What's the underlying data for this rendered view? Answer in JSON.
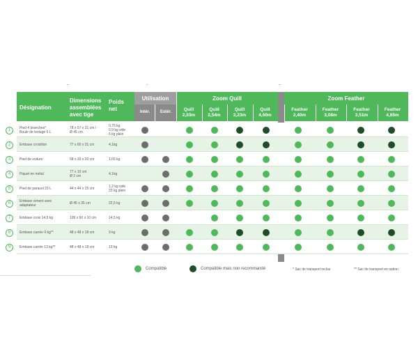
{
  "colors": {
    "green": "#4fb85a",
    "dark_green": "#1e4d27",
    "grey_dot": "#6d6d6d",
    "header_grey": "#9e9e9e",
    "row_alt": "#e8f3e8"
  },
  "header": {
    "designation": "Désignation",
    "dimensions_l1": "Dimensions",
    "dimensions_l2": "assemblées",
    "dimensions_l3": "avec tige",
    "poids_l1": "Poids",
    "poids_l2": "net",
    "utilisation": "Utilisation",
    "interieur": "Intér.",
    "exterieur": "Extér.",
    "zoom_quill": "Zoom Quill",
    "zoom_feather": "Zoom Feather",
    "quill_cols": [
      {
        "l1": "Quill",
        "l2": "2,03m"
      },
      {
        "l1": "Quill",
        "l2": "2,54m"
      },
      {
        "l1": "Quill",
        "l2": "3,23m"
      },
      {
        "l1": "Quill",
        "l2": "4,60m"
      }
    ],
    "feather_cols": [
      {
        "l1": "Feather",
        "l2": "2,40m"
      },
      {
        "l1": "Feather",
        "l2": "3,08m"
      },
      {
        "l1": "Feather",
        "l2": "3,51m"
      },
      {
        "l1": "Feather",
        "l2": "4,65m"
      }
    ]
  },
  "rows": [
    {
      "num": "1",
      "name_l1": "Pied 4 branches*",
      "name_l2": "Boule de lestage 6 L",
      "dim_l1": "78 x 57 x 31 cm /",
      "dim_l2": "Ø 45 cm",
      "poids_l1": "0,75 kg",
      "poids_l2": "0,9 kg vide",
      "poids_l3": "6 kg plein",
      "use": [
        "grey",
        ""
      ],
      "quill": [
        "green",
        "green",
        "dark",
        "dark"
      ],
      "feather": [
        "green",
        "green",
        "dark",
        "dark"
      ]
    },
    {
      "num": "2",
      "name_l1": "Embase croisillon",
      "name_l2": "",
      "dim_l1": "77 x 60 x 31 cm",
      "dim_l2": "",
      "poids_l1": "4,1kg",
      "poids_l2": "",
      "poids_l3": "",
      "use": [
        "grey",
        ""
      ],
      "quill": [
        "green",
        "green",
        "dark",
        "dark"
      ],
      "feather": [
        "green",
        "green",
        "dark",
        "dark"
      ]
    },
    {
      "num": "3",
      "name_l1": "Pied de voiture",
      "name_l2": "",
      "dim_l1": "58 x 33 x 20 cm",
      "dim_l2": "",
      "poids_l1": "1,65 kg",
      "poids_l2": "",
      "poids_l3": "",
      "use": [
        "grey",
        "grey"
      ],
      "quill": [
        "green",
        "green",
        "green",
        "green"
      ],
      "feather": [
        "green",
        "green",
        "green",
        "green"
      ]
    },
    {
      "num": "4",
      "name_l1": "Piquet en métal",
      "name_l2": "",
      "dim_l1": "77 x 10 cm",
      "dim_l2": "Ø 2 cm",
      "poids_l1": "4,1kg",
      "poids_l2": "",
      "poids_l3": "",
      "use": [
        "",
        "grey"
      ],
      "quill": [
        "green",
        "green",
        "green",
        "green"
      ],
      "feather": [
        "green",
        "green",
        "green",
        "green"
      ]
    },
    {
      "num": "5",
      "name_l1": "Pied de parasol 23 L",
      "name_l2": "",
      "dim_l1": "44 x 44 x 25 cm",
      "dim_l2": "",
      "poids_l1": "1,2 kg vide",
      "poids_l2": "23 kg plein",
      "poids_l3": "",
      "use": [
        "grey",
        "grey"
      ],
      "quill": [
        "green",
        "green",
        "green",
        "green"
      ],
      "feather": [
        "green",
        "green",
        "green",
        "green"
      ]
    },
    {
      "num": "6",
      "name_l1": "Embase ciment avec",
      "name_l2": "adaptateur",
      "dim_l1": "Ø 45 x 35 cm",
      "dim_l2": "",
      "poids_l1": "22,5 kg",
      "poids_l2": "",
      "poids_l3": "",
      "use": [
        "grey",
        "grey"
      ],
      "quill": [
        "green",
        "green",
        "green",
        "green"
      ],
      "feather": [
        "green",
        "green",
        "green",
        "green"
      ]
    },
    {
      "num": "7",
      "name_l1": "Embase croix 14,5 kg",
      "name_l2": "",
      "dim_l1": "100 x 60 x 10 cm",
      "dim_l2": "",
      "poids_l1": "14,5 kg",
      "poids_l2": "",
      "poids_l3": "",
      "use": [
        "grey",
        "grey"
      ],
      "quill": [
        "",
        "green",
        "green",
        "green"
      ],
      "feather": [
        "green",
        "green",
        "green",
        "green"
      ]
    },
    {
      "num": "8",
      "name_l1": "Embase carrée 9 kg**",
      "name_l2": "",
      "dim_l1": "48 x 48 x 18 cm",
      "dim_l2": "",
      "poids_l1": "9 kg",
      "poids_l2": "",
      "poids_l3": "",
      "use": [
        "grey",
        "grey"
      ],
      "quill": [
        "green",
        "green",
        "dark",
        "dark"
      ],
      "feather": [
        "green",
        "green",
        "dark",
        "dark"
      ]
    },
    {
      "num": "9",
      "name_l1": "Embase carrée 13 kg**",
      "name_l2": "",
      "dim_l1": "48 x 48 x 18 cm",
      "dim_l2": "",
      "poids_l1": "13 kg",
      "poids_l2": "",
      "poids_l3": "",
      "use": [
        "grey",
        "grey"
      ],
      "quill": [
        "green",
        "green",
        "green",
        "green"
      ],
      "feather": [
        "green",
        "green",
        "green",
        "green"
      ]
    }
  ],
  "legend": {
    "compatible": "Compatible",
    "compatible_not_recommended": "Compatible mais non recommandé",
    "note_1": "* Sac de transport inclus",
    "note_2": "** Sac de transport en option"
  }
}
